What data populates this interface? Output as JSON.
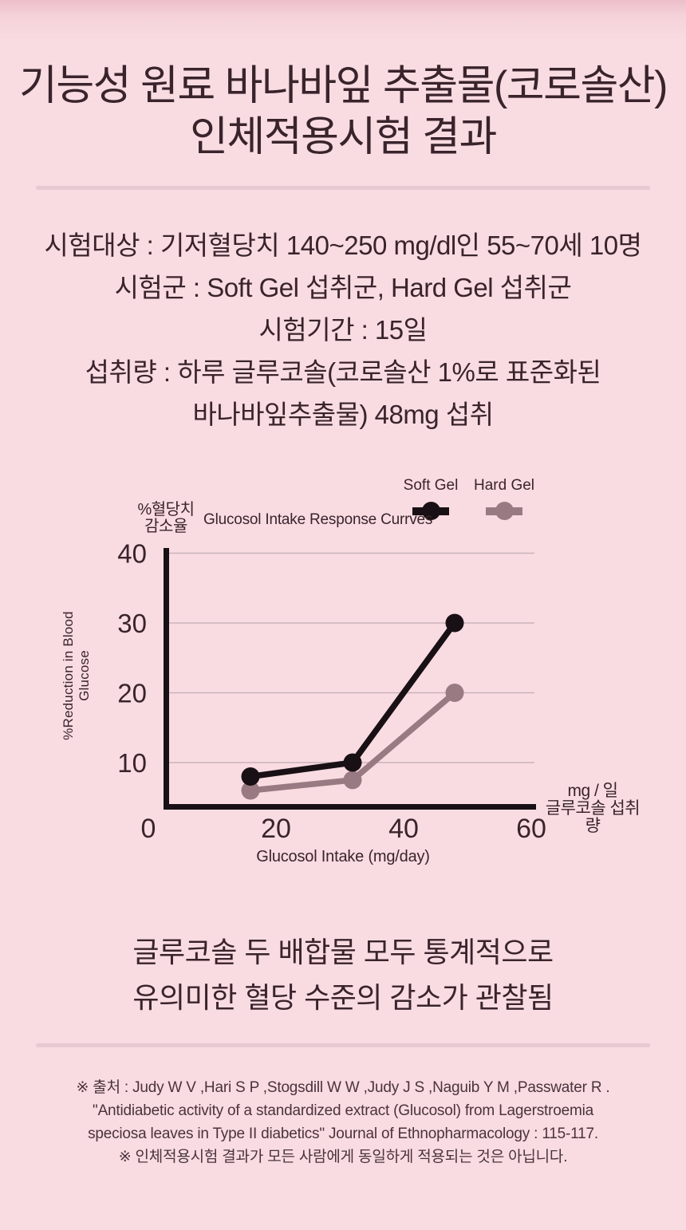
{
  "page": {
    "bg": "#f9dce2",
    "bg_top": "#ecbec9",
    "text_color": "#3a242c",
    "divider_color": "#e8c9d1"
  },
  "title": {
    "line1": "기능성 원료 바나바잎 추출물(코로솔산)",
    "line2": "인체적용시험 결과"
  },
  "study_info": {
    "lines": [
      "시험대상 : 기저혈당치 140~250 mg/dl인 55~70세 10명",
      "시험군 : Soft Gel 섭취군, Hard Gel 섭취군",
      "시험기간 : 15일",
      "섭취량 : 하루 글루코솔(코로솔산 1%로 표준화된",
      "바나바잎추출물) 48mg 섭취"
    ]
  },
  "chart": {
    "title": "Glucosol Intake Response Currves",
    "legend": [
      {
        "label": "Soft Gel",
        "color": "#181014"
      },
      {
        "label": "Hard Gel",
        "color": "#9a7a82"
      }
    ],
    "y_unit_line1": "%혈당치",
    "y_unit_line2": "감소율",
    "y_axis_label_line1": "%Reduction in Blood",
    "y_axis_label_line2": "Glucose",
    "x_unit_line1": "mg / 일",
    "x_unit_line2": "글루코솔 섭취량",
    "x_axis_label": "Glucosol Intake (mg/day)"
  },
  "chart_data": {
    "type": "line",
    "title": "Glucosol Intake Response Currves",
    "xlabel": "Glucosol Intake (mg/day)",
    "ylabel": "%Reduction in Blood Glucose",
    "x": [
      16,
      32,
      48
    ],
    "series": [
      {
        "name": "Soft Gel",
        "color": "#181014",
        "values": [
          8,
          10,
          30
        ]
      },
      {
        "name": "Hard Gel",
        "color": "#9a7a82",
        "values": [
          6,
          7.5,
          20
        ]
      }
    ],
    "xticks": [
      0,
      20,
      40,
      60
    ],
    "yticks": [
      10,
      20,
      30,
      40
    ],
    "xlim": [
      0,
      60
    ],
    "ylim": [
      4,
      41
    ],
    "grid": "horizontal",
    "gridline_color": "#c9b3ba",
    "legend_position": "top-right"
  },
  "conclusion": {
    "line1": "글루코솔 두 배합물 모두 통계적으로",
    "line2": "유의미한 혈당 수준의 감소가 관찰됨"
  },
  "footer": {
    "lines": [
      "※ 출처 : Judy W V ,Hari S P ,Stogsdill W W ,Judy J S ,Naguib Y M ,Passwater R .",
      "\"Antidiabetic activity of a standardized extract (Glucosol) from Lagerstroemia",
      "speciosa leaves in Type II diabetics\" Journal of Ethnopharmacology : 115-117.",
      "※ 인체적용시험 결과가 모든 사람에게 동일하게 적용되는 것은 아닙니다."
    ]
  }
}
